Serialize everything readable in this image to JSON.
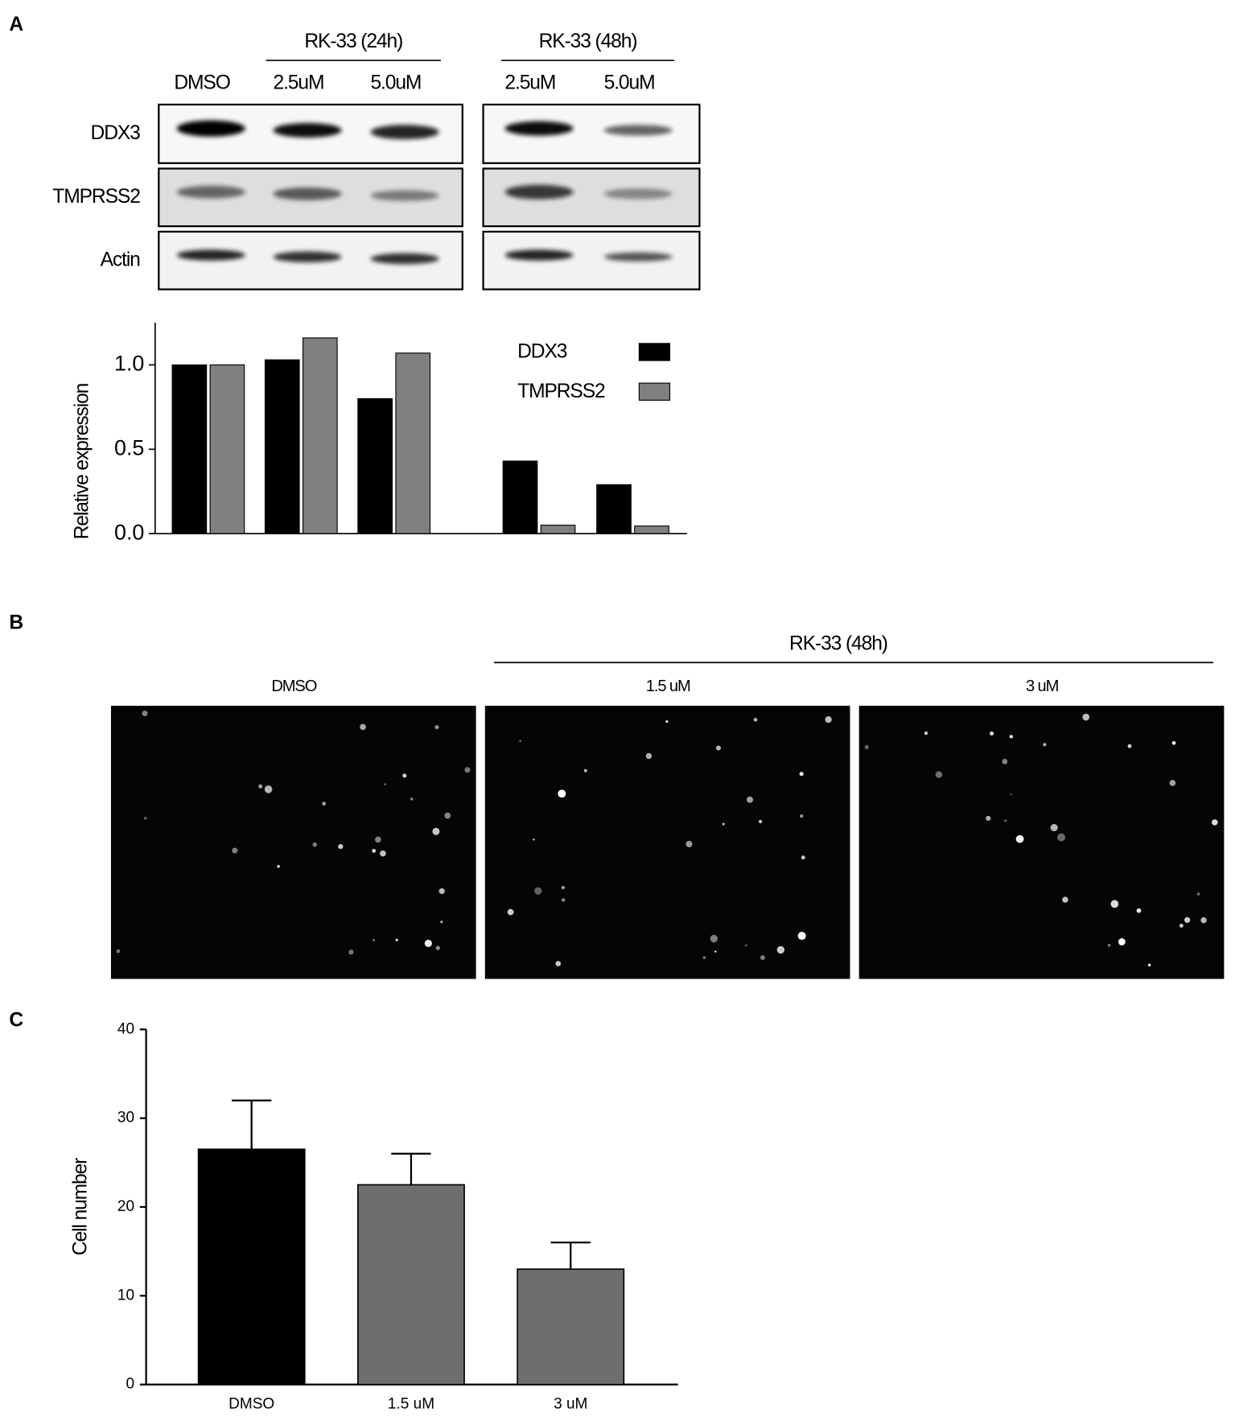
{
  "panels": [
    "A",
    "B",
    "C"
  ],
  "blot": {
    "treatments": [
      "RK-33 (24h)",
      "RK-33 (48h)"
    ],
    "lanes": [
      "DMSO",
      "2.5uM",
      "5.0uM",
      "2.5uM",
      "5.0uM"
    ],
    "proteins": [
      "DDX3",
      "TMPRSS2",
      "Actin"
    ]
  },
  "images": {
    "treatment": "RK-33 (48h)",
    "conditions": [
      "DMSO",
      "1.5 uM",
      "3 uM"
    ]
  },
  "chart_data": [
    {
      "type": "grouped-bar",
      "ylabel": "Relative expression",
      "categories": [
        null,
        null,
        null,
        null,
        null
      ],
      "series": [
        {
          "name": "DDX3",
          "color": "#000000",
          "values": [
            1.0,
            1.03,
            0.8,
            0.43,
            0.29
          ]
        },
        {
          "name": "TMPRSS2",
          "color": "#808080",
          "values": [
            1.0,
            1.16,
            1.07,
            0.05,
            0.045
          ]
        }
      ],
      "ylim": [
        0,
        1.25
      ],
      "yticks": [
        {
          "value": 0,
          "label": "0.0"
        },
        0.5,
        {
          "value": 1,
          "label": "1.0"
        }
      ],
      "legend": "upper right"
    },
    {
      "type": "bar-error",
      "ylabel": "Cell number",
      "categories": [
        "DMSO",
        "1.5 uM",
        "3 uM"
      ],
      "values": [
        26.5,
        22.5,
        13
      ],
      "errors": [
        5.5,
        3.5,
        3
      ],
      "colors": [
        "#000000",
        "#6e6e6e",
        "#6e6e6e"
      ],
      "ylim": [
        0,
        40
      ],
      "yticks": [
        0,
        10,
        20,
        30,
        40
      ]
    }
  ]
}
